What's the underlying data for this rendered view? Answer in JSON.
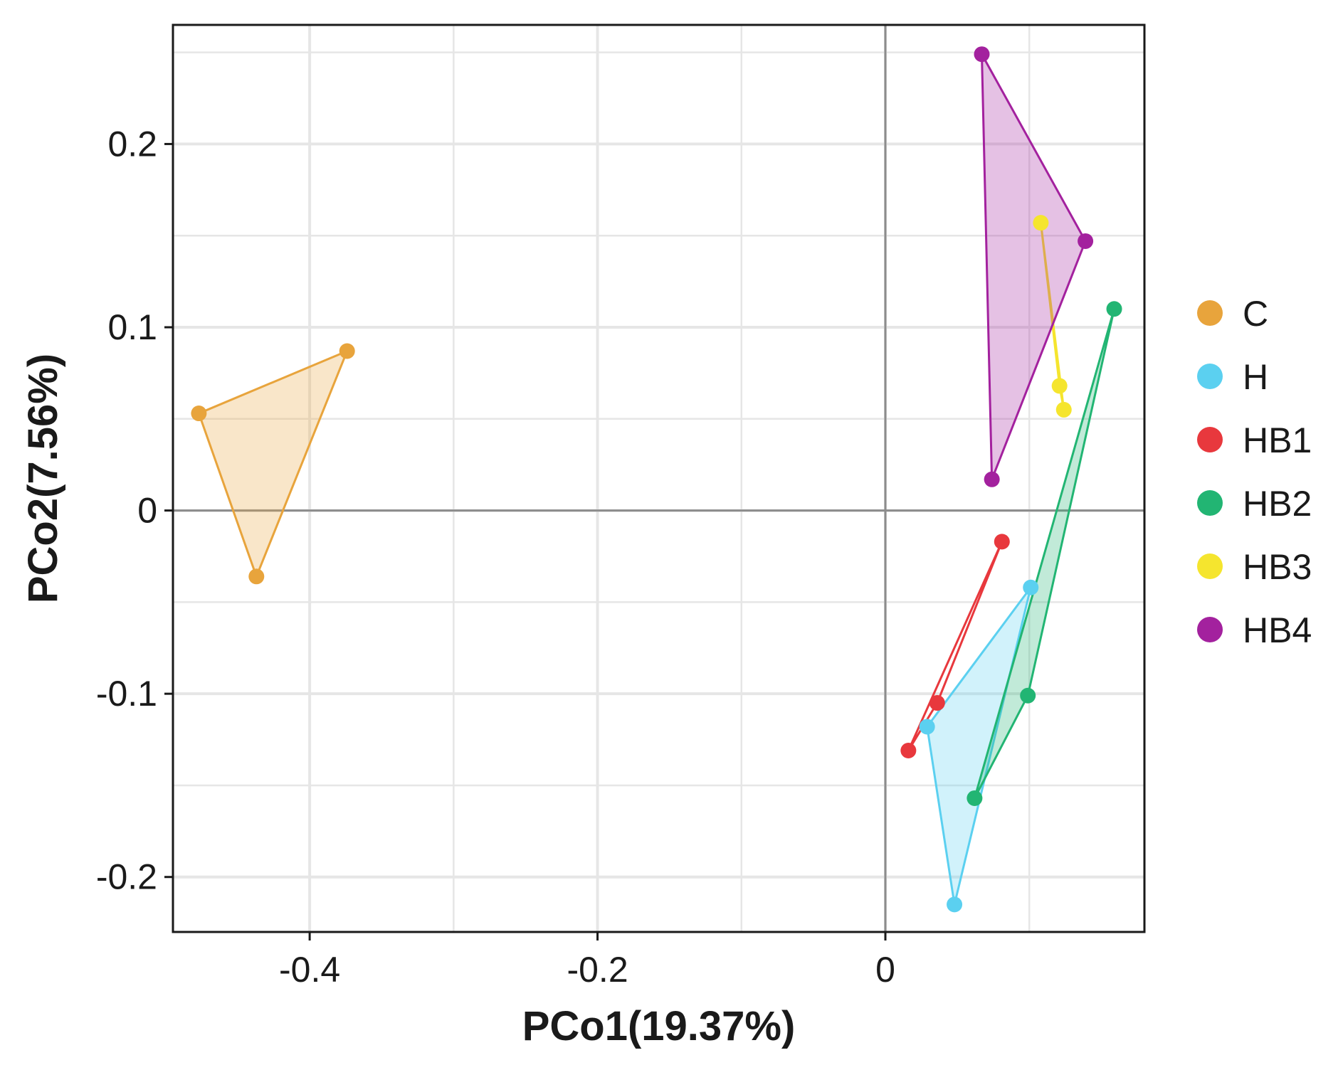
{
  "chart_data": {
    "type": "scatter",
    "title": "",
    "xlabel": "PCo1(19.37%)",
    "ylabel": "PCo2(7.56%)",
    "xlim": [
      -0.495,
      0.18
    ],
    "ylim": [
      -0.23,
      0.265
    ],
    "x_ticks": [
      -0.4,
      -0.2,
      0
    ],
    "x_tick_labels": [
      "-0.4",
      "-0.2",
      "0"
    ],
    "y_ticks": [
      0.2,
      0.1,
      0,
      -0.1,
      -0.2
    ],
    "y_tick_labels": [
      "0.2",
      "0.1",
      "0",
      "-0.1",
      "-0.2"
    ],
    "grid": true,
    "zero_lines": true,
    "legend_position": "right",
    "series": [
      {
        "name": "C",
        "color": "#E8A43C",
        "hull": "filled",
        "points": [
          [
            -0.477,
            0.053
          ],
          [
            -0.374,
            0.087
          ],
          [
            -0.437,
            -0.036
          ]
        ]
      },
      {
        "name": "H",
        "color": "#5BD0F0",
        "hull": "filled",
        "points": [
          [
            0.029,
            -0.118
          ],
          [
            0.101,
            -0.042
          ],
          [
            0.048,
            -0.215
          ]
        ]
      },
      {
        "name": "HB1",
        "color": "#E8383D",
        "hull": "lines",
        "points": [
          [
            0.016,
            -0.131
          ],
          [
            0.081,
            -0.017
          ],
          [
            0.036,
            -0.105
          ]
        ]
      },
      {
        "name": "HB2",
        "color": "#22B573",
        "hull": "filled",
        "points": [
          [
            0.159,
            0.11
          ],
          [
            0.099,
            -0.101
          ],
          [
            0.062,
            -0.157
          ]
        ]
      },
      {
        "name": "HB3",
        "color": "#F5E52E",
        "hull": "lines",
        "points": [
          [
            0.108,
            0.157
          ],
          [
            0.121,
            0.068
          ],
          [
            0.124,
            0.055
          ]
        ]
      },
      {
        "name": "HB4",
        "color": "#A3219E",
        "hull": "filled",
        "points": [
          [
            0.067,
            0.249
          ],
          [
            0.139,
            0.147
          ],
          [
            0.074,
            0.017
          ]
        ]
      }
    ]
  }
}
